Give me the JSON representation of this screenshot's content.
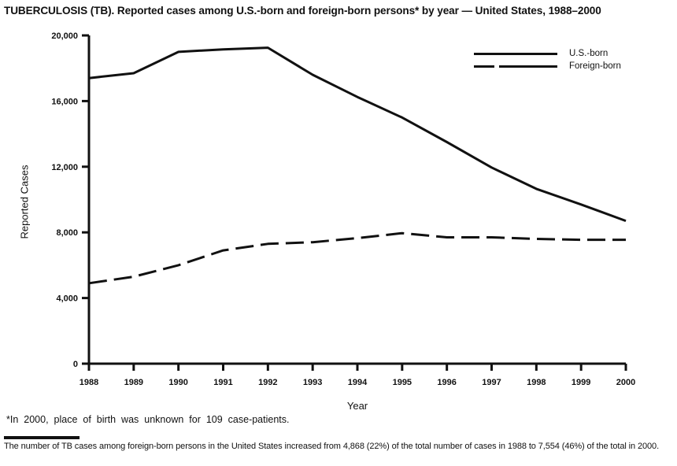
{
  "title": "TUBERCULOSIS (TB). Reported cases among U.S.-born and foreign-born persons* by year — United States, 1988–2000",
  "chart_data": {
    "type": "line",
    "title": "TUBERCULOSIS (TB). Reported cases among U.S.-born and foreign-born persons* by year — United States, 1988–2000",
    "xlabel": "Year",
    "ylabel": "Reported Cases",
    "ylim": [
      0,
      20000
    ],
    "yticks": [
      0,
      4000,
      8000,
      12000,
      16000,
      20000
    ],
    "ytick_labels": [
      "0",
      "4,000",
      "8,000",
      "12,000",
      "16,000",
      "20,000"
    ],
    "categories": [
      "1988",
      "1989",
      "1990",
      "1991",
      "1992",
      "1993",
      "1994",
      "1995",
      "1996",
      "1997",
      "1998",
      "1999",
      "2000"
    ],
    "series": [
      {
        "name": "U.S.-born",
        "style": "solid",
        "values": [
          17400,
          17700,
          19000,
          19150,
          19250,
          17600,
          16250,
          15000,
          13500,
          11950,
          10650,
          9700,
          8700
        ]
      },
      {
        "name": "Foreign-born",
        "style": "dashed",
        "values": [
          4900,
          5300,
          6000,
          6900,
          7300,
          7400,
          7650,
          7950,
          7700,
          7700,
          7600,
          7550,
          7550
        ]
      }
    ],
    "legend_position": "top-right",
    "grid": false
  },
  "legend": {
    "us_born_label": "U.S.-born",
    "foreign_born_label": "Foreign-born"
  },
  "footnote": "*In 2000, place of birth was unknown for 109 case-patients.",
  "bottom_note": "The number of TB cases among foreign-born persons in the United States increased from 4,868 (22%) of the total number of cases in 1988 to 7,554 (46%) of the total in 2000.",
  "colors": {
    "line": "#111111",
    "text": "#111111",
    "background": "#ffffff"
  }
}
